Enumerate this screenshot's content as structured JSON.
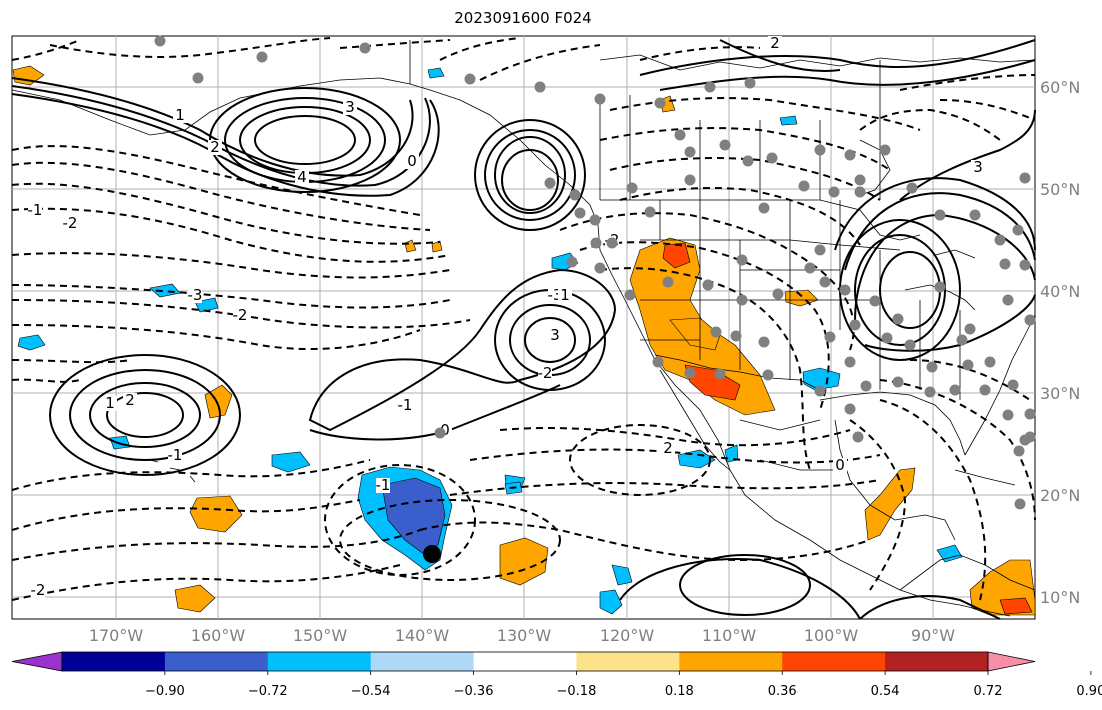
{
  "title": "2023091600 F024",
  "map": {
    "lon_labels": [
      "170°W",
      "160°W",
      "150°W",
      "140°W",
      "130°W",
      "120°W",
      "110°W",
      "100°W",
      "90°W"
    ],
    "lat_labels": [
      "60°N",
      "50°N",
      "40°N",
      "30°N",
      "20°N",
      "10°N"
    ],
    "lon_range": [
      -180,
      -80
    ],
    "lat_range": [
      8,
      66
    ],
    "contour_labels": [
      "3",
      "4",
      "2",
      "1",
      "0",
      "-1",
      "-2",
      "-3",
      "2",
      "1",
      "-1",
      "-2",
      "3",
      "-3",
      "-2",
      "-1",
      "1",
      "0",
      "-1",
      "2",
      "-2",
      "2",
      "3",
      "0",
      "-1",
      "-2"
    ]
  },
  "colorbar": {
    "tick_labels": [
      "−0.90",
      "−0.72",
      "−0.54",
      "−0.36",
      "−0.18",
      "0.18",
      "0.36",
      "0.54",
      "0.72",
      "0.90"
    ],
    "colors": [
      "#9933cc",
      "#000099",
      "#3a5fcd",
      "#00bfff",
      "#add8f6",
      "#ffffff",
      "#fce38a",
      "#ffa500",
      "#ff4500",
      "#b22222",
      "#f88fa8"
    ]
  },
  "colors": {
    "positive_fill": "#ffa500",
    "strong_positive_fill": "#ff4500",
    "negative_fill": "#00bfff",
    "strong_negative_fill": "#3a5fcd",
    "station_marker": "#808080",
    "highlight_marker": "#000000"
  }
}
